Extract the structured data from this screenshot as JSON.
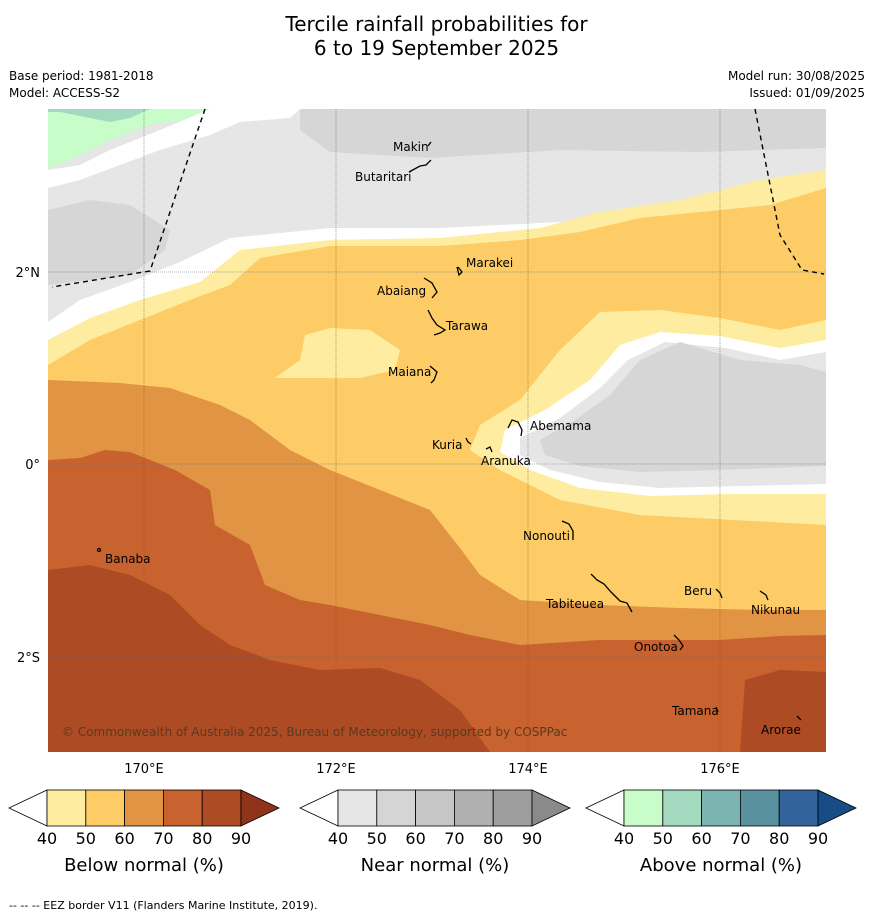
{
  "title": {
    "line1": "Tercile rainfall probabilities for",
    "line2": "6 to 19 September 2025"
  },
  "meta": {
    "base_period": "Base period: 1981-2018",
    "model": "Model: ACCESS-S2",
    "model_run": "Model run: 30/08/2025",
    "issued": "Issued: 01/09/2025"
  },
  "axes": {
    "lon_ticks": [
      "170°E",
      "172°E",
      "174°E",
      "176°E"
    ],
    "lat_ticks": [
      "2°N",
      "0°",
      "2°S"
    ]
  },
  "places": {
    "makin": "Makin",
    "butaritari": "Butaritari",
    "marakei": "Marakei",
    "abaiang": "Abaiang",
    "tarawa": "Tarawa",
    "maiana": "Maiana",
    "abemama": "Abemama",
    "kuria": "Kuria",
    "aranuka": "Aranuka",
    "banaba": "Banaba",
    "nonouti": "Nonouti",
    "tabiteuea": "Tabiteuea",
    "beru": "Beru",
    "nikunau": "Nikunau",
    "onotoa": "Onotoa",
    "tamana": "Tamana",
    "arorae": "Arorae"
  },
  "copyright": "© Commonwealth of Australia 2025, Bureau of Meteorology, supported by COSPPac",
  "legend": {
    "below": {
      "label": "Below normal (%)",
      "ticks": [
        "40",
        "50",
        "60",
        "70",
        "80",
        "90"
      ],
      "colors": [
        "#ffffff",
        "#feeda0",
        "#fdcc66",
        "#e09444",
        "#c8622e",
        "#ad4b25",
        "#8f3418"
      ]
    },
    "near": {
      "label": "Near normal (%)",
      "ticks": [
        "40",
        "50",
        "60",
        "70",
        "80",
        "90"
      ],
      "colors": [
        "#ffffff",
        "#e6e6e6",
        "#d5d5d5",
        "#c6c6c6",
        "#b0b0b0",
        "#9e9e9e",
        "#8a8a8a"
      ]
    },
    "above": {
      "label": "Above normal (%)",
      "ticks": [
        "40",
        "50",
        "60",
        "70",
        "80",
        "90"
      ],
      "colors": [
        "#ffffff",
        "#c8fcc8",
        "#a3d9bf",
        "#7cb4b1",
        "#5a919f",
        "#32639a",
        "#174c85"
      ]
    }
  },
  "footer": "-- -- -- EEZ border V11 (Flanders Marine Institute, 2019)."
}
